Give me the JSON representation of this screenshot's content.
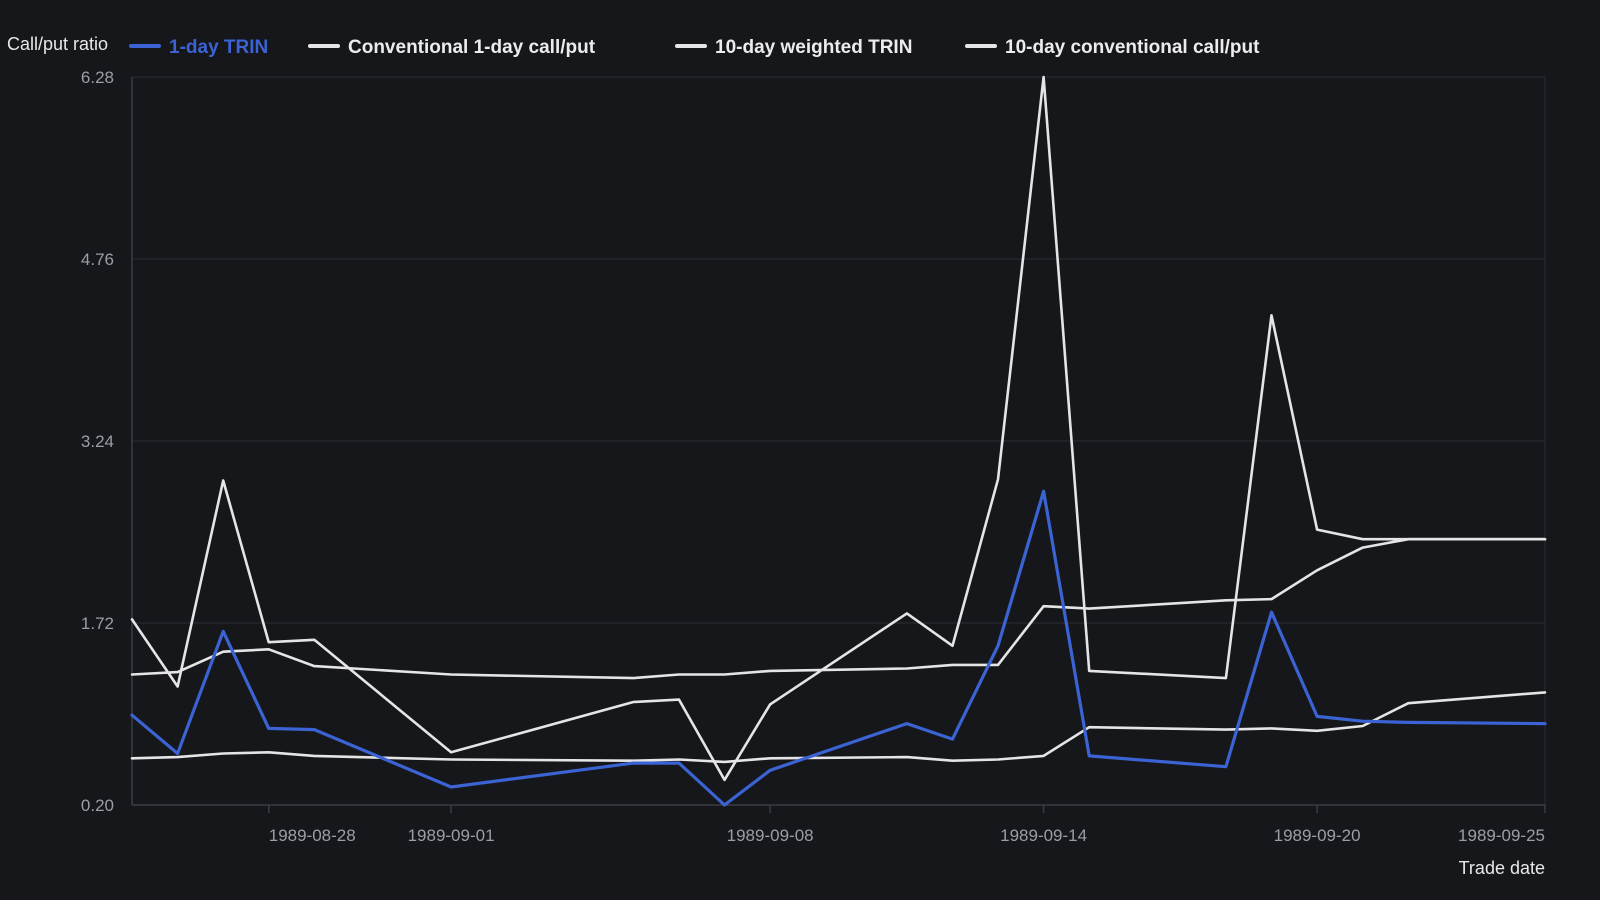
{
  "chart_data": {
    "type": "line",
    "title": "",
    "ylabel": "Call/put ratio",
    "xlabel": "Trade date",
    "ylim": [
      0.2,
      6.28
    ],
    "yticks": [
      "0.20",
      "1.72",
      "3.24",
      "4.76",
      "6.28"
    ],
    "xticks": [
      "1989-08-28",
      "1989-09-01",
      "1989-09-08",
      "1989-09-14",
      "1989-09-20",
      "1989-09-25"
    ],
    "grid": true,
    "legend_position": "top",
    "x": [
      "1989-08-25",
      "1989-08-26",
      "1989-08-27",
      "1989-08-28",
      "1989-08-29",
      "1989-09-01",
      "1989-09-05",
      "1989-09-06",
      "1989-09-07",
      "1989-09-08",
      "1989-09-11",
      "1989-09-12",
      "1989-09-13",
      "1989-09-14",
      "1989-09-15",
      "1989-09-18",
      "1989-09-19",
      "1989-09-20",
      "1989-09-21",
      "1989-09-22",
      "1989-09-25"
    ],
    "series": [
      {
        "name": "1-day TRIN",
        "color": "#3b63d4",
        "values": [
          0.95,
          0.63,
          1.65,
          0.84,
          0.83,
          0.35,
          0.55,
          0.55,
          0.2,
          0.49,
          0.88,
          0.75,
          1.53,
          2.82,
          0.61,
          0.52,
          1.81,
          0.94,
          0.9,
          0.89,
          0.88
        ]
      },
      {
        "name": "Conventional 1-day call/put",
        "color": "#e5e5e7",
        "values": [
          1.75,
          1.19,
          2.91,
          1.56,
          1.58,
          0.64,
          1.06,
          1.08,
          0.41,
          1.04,
          1.8,
          1.53,
          2.92,
          6.28,
          1.32,
          1.26,
          4.29,
          2.5,
          2.42,
          2.42,
          2.42
        ]
      },
      {
        "name": "10-day weighted TRIN",
        "color": "#e5e5e7",
        "values": [
          1.29,
          1.31,
          1.48,
          1.5,
          1.36,
          1.29,
          1.26,
          1.29,
          1.29,
          1.32,
          1.34,
          1.37,
          1.37,
          1.86,
          1.84,
          1.91,
          1.92,
          2.16,
          2.35,
          2.42,
          2.42
        ]
      },
      {
        "name": "10-day conventional call/put",
        "color": "#e5e5e7",
        "values": [
          0.59,
          0.6,
          0.63,
          0.64,
          0.61,
          0.58,
          0.57,
          0.58,
          0.56,
          0.59,
          0.6,
          0.57,
          0.58,
          0.61,
          0.85,
          0.83,
          0.84,
          0.82,
          0.86,
          1.05,
          1.14
        ]
      }
    ]
  }
}
